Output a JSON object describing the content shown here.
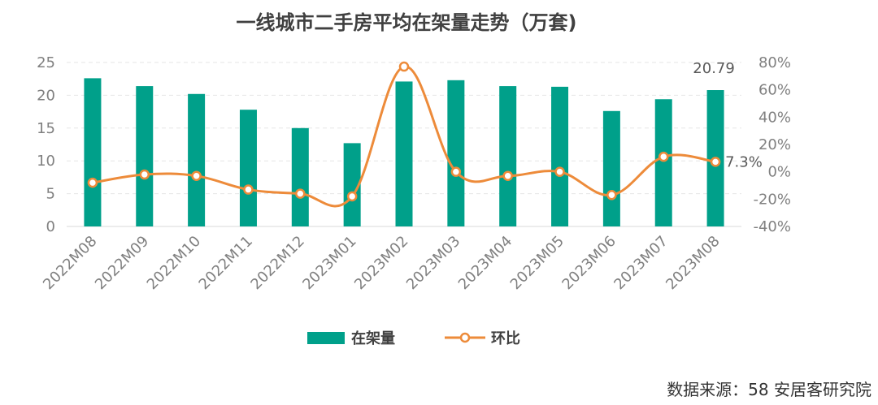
{
  "chart_data": {
    "type": "bar+line",
    "title": "一线城市二手房平均在架量走势（万套)",
    "categories": [
      "2022M08",
      "2022M09",
      "2022M10",
      "2022M11",
      "2022M12",
      "2023M01",
      "2023M02",
      "2023M03",
      "2023M04",
      "2023M05",
      "2023M06",
      "2023M07",
      "2023M08"
    ],
    "series": [
      {
        "name": "在架量",
        "kind": "bar",
        "axis": "left",
        "color": "#00A08A",
        "values": [
          22.6,
          21.4,
          20.2,
          17.8,
          15.0,
          12.7,
          22.1,
          22.3,
          21.4,
          21.3,
          17.6,
          19.4,
          20.79
        ]
      },
      {
        "name": "环比",
        "kind": "line",
        "axis": "right",
        "color": "#ED8B3A",
        "values": [
          -8,
          -2,
          -3,
          -13,
          -16,
          -18,
          77,
          0,
          -3,
          0,
          -17,
          11,
          7.3
        ]
      }
    ],
    "left_axis": {
      "min": 0,
      "max": 25,
      "step": 5,
      "ticks": [
        "0",
        "5",
        "10",
        "15",
        "20",
        "25"
      ]
    },
    "right_axis": {
      "min": -40,
      "max": 80,
      "step": 20,
      "ticks": [
        "-40%",
        "-20%",
        "0%",
        "20%",
        "40%",
        "60%",
        "80%"
      ]
    },
    "data_labels": [
      {
        "series": "在架量",
        "index": 12,
        "text": "20.79"
      },
      {
        "series": "环比",
        "index": 12,
        "text": "7.3%"
      }
    ],
    "grid": true,
    "legend": {
      "position": "bottom",
      "items": [
        "在架量",
        "环比"
      ]
    }
  },
  "source": "数据来源：58 安居客研究院"
}
